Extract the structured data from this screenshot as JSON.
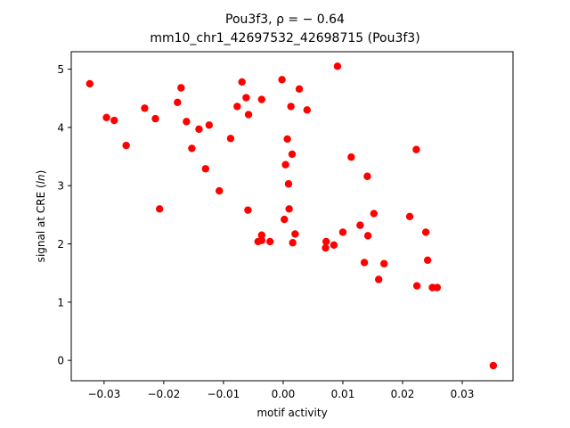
{
  "chart_data": {
    "type": "scatter",
    "title_prefix": "Pou3f3, ",
    "title_rho": "ρ = − 0.64",
    "subtitle": "mm10_chr1_42697532_42698715 (Pou3f3)",
    "xlabel": "motif activity",
    "ylabel_prefix": "signal at CRE (",
    "ylabel_italic": "ln",
    "ylabel_suffix": ")",
    "xlim": [
      -0.0355,
      0.0385
    ],
    "ylim": [
      -0.35,
      5.3
    ],
    "xticks": [
      -0.03,
      -0.02,
      -0.01,
      0.0,
      0.01,
      0.02,
      0.03
    ],
    "xtick_labels": [
      "−0.03",
      "−0.02",
      "−0.01",
      "0.00",
      "0.01",
      "0.02",
      "0.03"
    ],
    "yticks": [
      0,
      1,
      2,
      3,
      4,
      5
    ],
    "ytick_labels": [
      "0",
      "1",
      "2",
      "3",
      "4",
      "5"
    ],
    "grid": false,
    "marker_color": "#ff0000",
    "x": [
      -0.0324,
      -0.0296,
      -0.0283,
      -0.0263,
      -0.0232,
      -0.0214,
      -0.0207,
      -0.0177,
      -0.0171,
      -0.0162,
      -0.0153,
      -0.0141,
      -0.013,
      -0.0124,
      -0.0107,
      -0.0088,
      -0.0077,
      -0.0069,
      -0.0062,
      -0.0059,
      -0.0058,
      -0.0042,
      -0.0036,
      -0.0036,
      -0.0022,
      -0.0036,
      -0.0002,
      0.0002,
      0.0004,
      0.0007,
      0.0013,
      0.0009,
      0.001,
      0.0015,
      0.0016,
      0.002,
      0.0027,
      0.004,
      0.0071,
      0.0072,
      0.0085,
      0.0091,
      0.01,
      0.0114,
      0.0129,
      0.0136,
      0.0141,
      0.0142,
      0.0152,
      0.016,
      0.0169,
      0.0212,
      0.0223,
      0.0224,
      0.0239,
      0.0242,
      0.025,
      0.0258,
      0.0352
    ],
    "y": [
      4.75,
      4.17,
      4.12,
      3.69,
      4.33,
      4.15,
      2.6,
      4.43,
      4.68,
      4.1,
      3.64,
      3.97,
      3.29,
      4.04,
      2.91,
      3.81,
      4.36,
      4.78,
      4.51,
      2.58,
      4.22,
      2.04,
      2.15,
      4.48,
      2.04,
      2.06,
      4.82,
      2.42,
      3.36,
      3.8,
      4.36,
      3.03,
      2.6,
      3.54,
      2.02,
      2.17,
      4.66,
      4.3,
      1.93,
      2.04,
      1.98,
      5.05,
      2.2,
      3.49,
      2.32,
      1.68,
      3.16,
      2.14,
      2.52,
      1.39,
      1.66,
      2.47,
      3.62,
      1.28,
      2.2,
      1.72,
      1.25,
      1.25,
      -0.09
    ]
  }
}
